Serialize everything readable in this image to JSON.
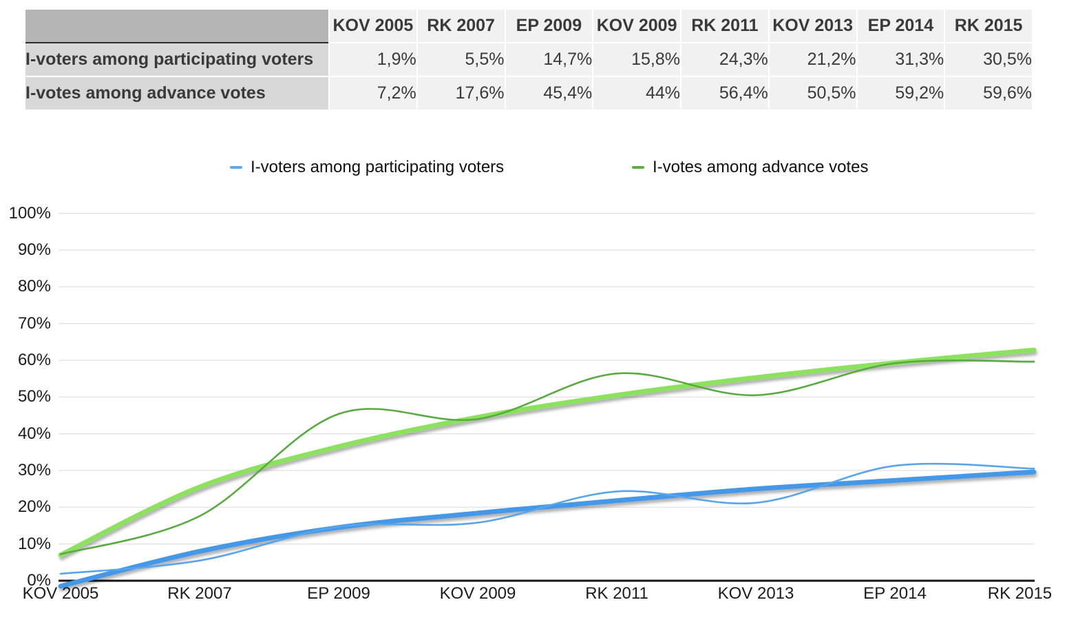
{
  "table": {
    "headers": [
      "KOV 2005",
      "RK 2007",
      "EP 2009",
      "KOV 2009",
      "RK 2011",
      "KOV 2013",
      "EP 2014",
      "RK 2015"
    ],
    "rows": [
      {
        "label": "I-voters among participating voters",
        "values": [
          "1,9%",
          "5,5%",
          "14,7%",
          "15,8%",
          "24,3%",
          "21,2%",
          "31,3%",
          "30,5%"
        ]
      },
      {
        "label": "I-votes among advance votes",
        "values": [
          "7,2%",
          "17,6%",
          "45,4%",
          "44%",
          "56,4%",
          "50,5%",
          "59,2%",
          "59,6%"
        ]
      }
    ]
  },
  "legend": [
    {
      "label": "I-voters among participating voters",
      "color": "#5fa8ec"
    },
    {
      "label": "I-votes among advance votes",
      "color": "#5cb041"
    }
  ],
  "chart_data": {
    "type": "line",
    "title": "",
    "xlabel": "",
    "ylabel": "",
    "categories": [
      "KOV 2005",
      "RK 2007",
      "EP 2009",
      "KOV 2009",
      "RK 2011",
      "KOV 2013",
      "EP 2014",
      "RK 2015"
    ],
    "series": [
      {
        "name": "I-voters among participating voters",
        "color": "#58a5ec",
        "trend_color": "#4598e8",
        "values": [
          1.9,
          5.5,
          14.7,
          15.8,
          24.3,
          21.2,
          31.3,
          30.5
        ],
        "trend_values": [
          -1.5,
          8,
          14.5,
          18.4,
          21.8,
          25,
          27.3,
          29.6
        ]
      },
      {
        "name": "I-votes among advance votes",
        "color": "#58ab3e",
        "trend_color": "#8ce25f",
        "values": [
          7.2,
          17.6,
          45.4,
          44,
          56.4,
          50.5,
          59.2,
          59.6
        ],
        "trend_values": [
          7,
          25.5,
          36.5,
          44.5,
          50.5,
          55.3,
          59.3,
          62.8
        ]
      }
    ],
    "y_ticks": [
      {
        "v": 0,
        "label": "0%"
      },
      {
        "v": 10,
        "label": "10%"
      },
      {
        "v": 20,
        "label": "20%"
      },
      {
        "v": 30,
        "label": "30%"
      },
      {
        "v": 40,
        "label": "40%"
      },
      {
        "v": 50,
        "label": "50%"
      },
      {
        "v": 60,
        "label": "60%"
      },
      {
        "v": 70,
        "label": "70%"
      },
      {
        "v": 80,
        "label": "80%"
      },
      {
        "v": 90,
        "label": "90%"
      },
      {
        "v": 100,
        "label": "100%"
      }
    ],
    "ylim": [
      0,
      100
    ],
    "grid": true,
    "legend_position": "top"
  }
}
